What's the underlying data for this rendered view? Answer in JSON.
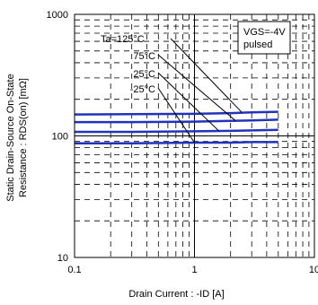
{
  "chart_data": {
    "type": "line",
    "title": "",
    "xlabel": "Drain Current : -ID [A]",
    "ylabel": [
      "Static Drain-Source On-State",
      "Resistance : RDS(on) [mΩ]"
    ],
    "xscale": "log",
    "yscale": "log",
    "xlim": [
      0.1,
      10
    ],
    "ylim": [
      10,
      1000
    ],
    "grid": true,
    "x_tick_labels": [
      "0.1",
      "1",
      "10"
    ],
    "y_tick_labels": [
      "10",
      "100",
      "1000"
    ],
    "condition_box": [
      "VGS=-4V",
      "pulsed"
    ],
    "series": [
      {
        "name": "Ta=125°C",
        "x": [
          0.1,
          0.3,
          1,
          2,
          3,
          5
        ],
        "y": [
          150,
          151,
          152,
          154,
          156,
          158
        ]
      },
      {
        "name": "75°C",
        "x": [
          0.1,
          0.3,
          1,
          2,
          3,
          5
        ],
        "y": [
          130,
          130,
          131,
          133,
          134,
          136
        ]
      },
      {
        "name": "25°C",
        "x": [
          0.1,
          0.3,
          1,
          2,
          3,
          5
        ],
        "y": [
          108,
          108,
          109,
          110,
          111,
          112
        ]
      },
      {
        "name": "-25°C",
        "x": [
          0.1,
          0.3,
          1,
          2,
          3,
          5
        ],
        "y": [
          87,
          87,
          88,
          88,
          89,
          89
        ]
      }
    ],
    "series_color": "#2233bb"
  }
}
